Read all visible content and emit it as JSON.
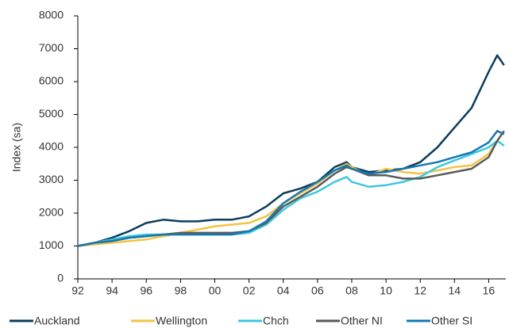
{
  "chart_data": {
    "type": "line",
    "y_label": "Index (sa)",
    "x": [
      1992,
      1993,
      1994,
      1995,
      1996,
      1997,
      1998,
      1999,
      2000,
      2001,
      2002,
      2003,
      2004,
      2005,
      2006,
      2007,
      2007.7,
      2008,
      2009,
      2010,
      2011,
      2012,
      2013,
      2014,
      2015,
      2016,
      2016.5,
      2016.9
    ],
    "series": [
      {
        "name": "Auckland",
        "color": "#0b3d5e",
        "values": [
          1000,
          1100,
          1250,
          1450,
          1700,
          1800,
          1750,
          1750,
          1800,
          1800,
          1900,
          2200,
          2600,
          2750,
          2950,
          3400,
          3550,
          3400,
          3250,
          3300,
          3350,
          3550,
          4000,
          4600,
          5200,
          6300,
          6800,
          6500
        ]
      },
      {
        "name": "Wellington",
        "color": "#f5c342",
        "values": [
          1000,
          1050,
          1100,
          1150,
          1200,
          1300,
          1400,
          1500,
          1600,
          1650,
          1700,
          1900,
          2300,
          2600,
          2900,
          3300,
          3500,
          3400,
          3150,
          3350,
          3250,
          3200,
          3300,
          3400,
          3450,
          3800,
          4200,
          4500
        ]
      },
      {
        "name": "Chch",
        "color": "#3cc8e0",
        "values": [
          1000,
          1100,
          1200,
          1300,
          1350,
          1350,
          1350,
          1350,
          1350,
          1350,
          1400,
          1650,
          2100,
          2450,
          2650,
          2950,
          3100,
          2950,
          2800,
          2850,
          2950,
          3100,
          3400,
          3600,
          3800,
          4000,
          4200,
          4050
        ]
      },
      {
        "name": "Other NI",
        "color": "#5a5a5a",
        "values": [
          1000,
          1100,
          1150,
          1250,
          1300,
          1350,
          1400,
          1400,
          1400,
          1400,
          1450,
          1700,
          2200,
          2500,
          2800,
          3200,
          3400,
          3350,
          3150,
          3150,
          3050,
          3050,
          3150,
          3250,
          3350,
          3700,
          4200,
          4500
        ]
      },
      {
        "name": "Other SI",
        "color": "#1478b4",
        "values": [
          1000,
          1100,
          1150,
          1250,
          1300,
          1350,
          1350,
          1350,
          1350,
          1350,
          1450,
          1750,
          2300,
          2650,
          2950,
          3300,
          3450,
          3350,
          3200,
          3250,
          3350,
          3450,
          3550,
          3700,
          3850,
          4150,
          4500,
          4400
        ]
      }
    ],
    "xlim": [
      1992,
      2017
    ],
    "xticks": [
      {
        "value": 1992,
        "label": "92"
      },
      {
        "value": 1994,
        "label": "94"
      },
      {
        "value": 1996,
        "label": "96"
      },
      {
        "value": 1998,
        "label": "98"
      },
      {
        "value": 2000,
        "label": "00"
      },
      {
        "value": 2002,
        "label": "02"
      },
      {
        "value": 2004,
        "label": "04"
      },
      {
        "value": 2006,
        "label": "06"
      },
      {
        "value": 2008,
        "label": "08"
      },
      {
        "value": 2010,
        "label": "10"
      },
      {
        "value": 2012,
        "label": "12"
      },
      {
        "value": 2014,
        "label": "14"
      },
      {
        "value": 2016,
        "label": "16"
      }
    ],
    "ylim": [
      0,
      8000
    ],
    "yticks": [
      0,
      1000,
      2000,
      3000,
      4000,
      5000,
      6000,
      7000,
      8000
    ],
    "grid": false,
    "legend": "bottom"
  }
}
